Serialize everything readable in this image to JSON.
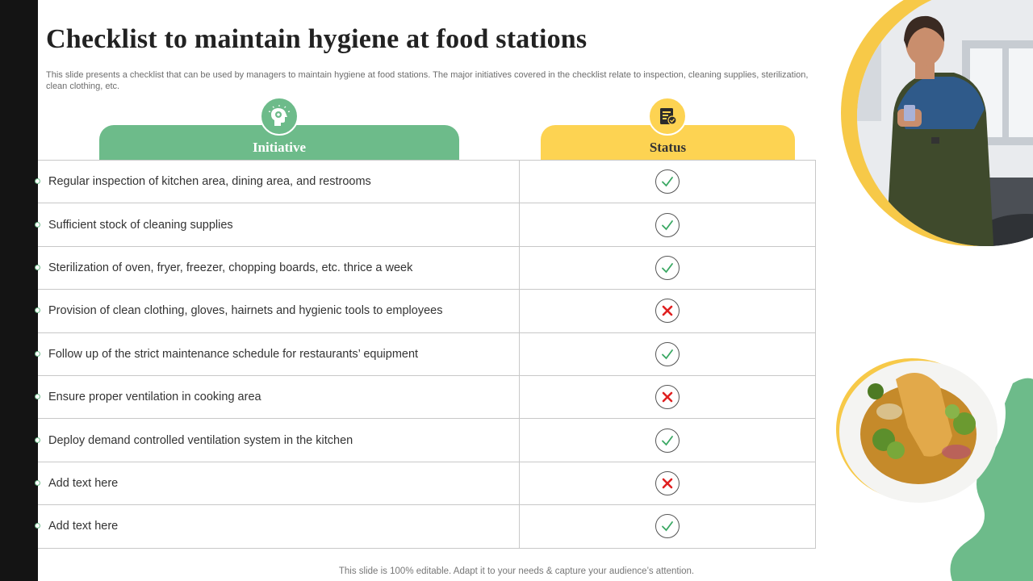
{
  "slide": {
    "title": "Checklist to maintain hygiene at food stations",
    "subtitle": "This slide presents a checklist that can be used by managers to maintain hygiene at food stations. The major initiatives covered in the checklist relate to inspection, cleaning supplies, sterilization, clean clothing, etc.",
    "footer": "This slide is 100% editable. Adapt it to your needs & capture your audience’s attention."
  },
  "headers": {
    "initiative": "Initiative",
    "status": "Status",
    "initiative_icon": "brain-gear-icon",
    "status_icon": "clipboard-check-icon"
  },
  "rows": [
    {
      "initiative": "Regular inspection of kitchen area, dining area, and restrooms",
      "status": "check"
    },
    {
      "initiative": "Sufficient stock of cleaning supplies",
      "status": "check"
    },
    {
      "initiative": "Sterilization of oven, fryer, freezer, chopping boards, etc. thrice a week",
      "status": "check"
    },
    {
      "initiative": "Provision of clean clothing, gloves, hairnets and hygienic tools to employees",
      "status": "cross"
    },
    {
      "initiative": "Follow up of the strict maintenance schedule for restaurants’ equipment",
      "status": "check"
    },
    {
      "initiative": "Ensure proper ventilation in cooking area",
      "status": "cross"
    },
    {
      "initiative": "Deploy demand controlled ventilation system in the kitchen",
      "status": "check"
    },
    {
      "initiative": "Add text here",
      "status": "cross"
    },
    {
      "initiative": "Add text here",
      "status": "check"
    }
  ],
  "colors": {
    "green": "#6dbb8a",
    "yellow": "#fdd352",
    "check": "#3aa863",
    "cross": "#e02020"
  }
}
